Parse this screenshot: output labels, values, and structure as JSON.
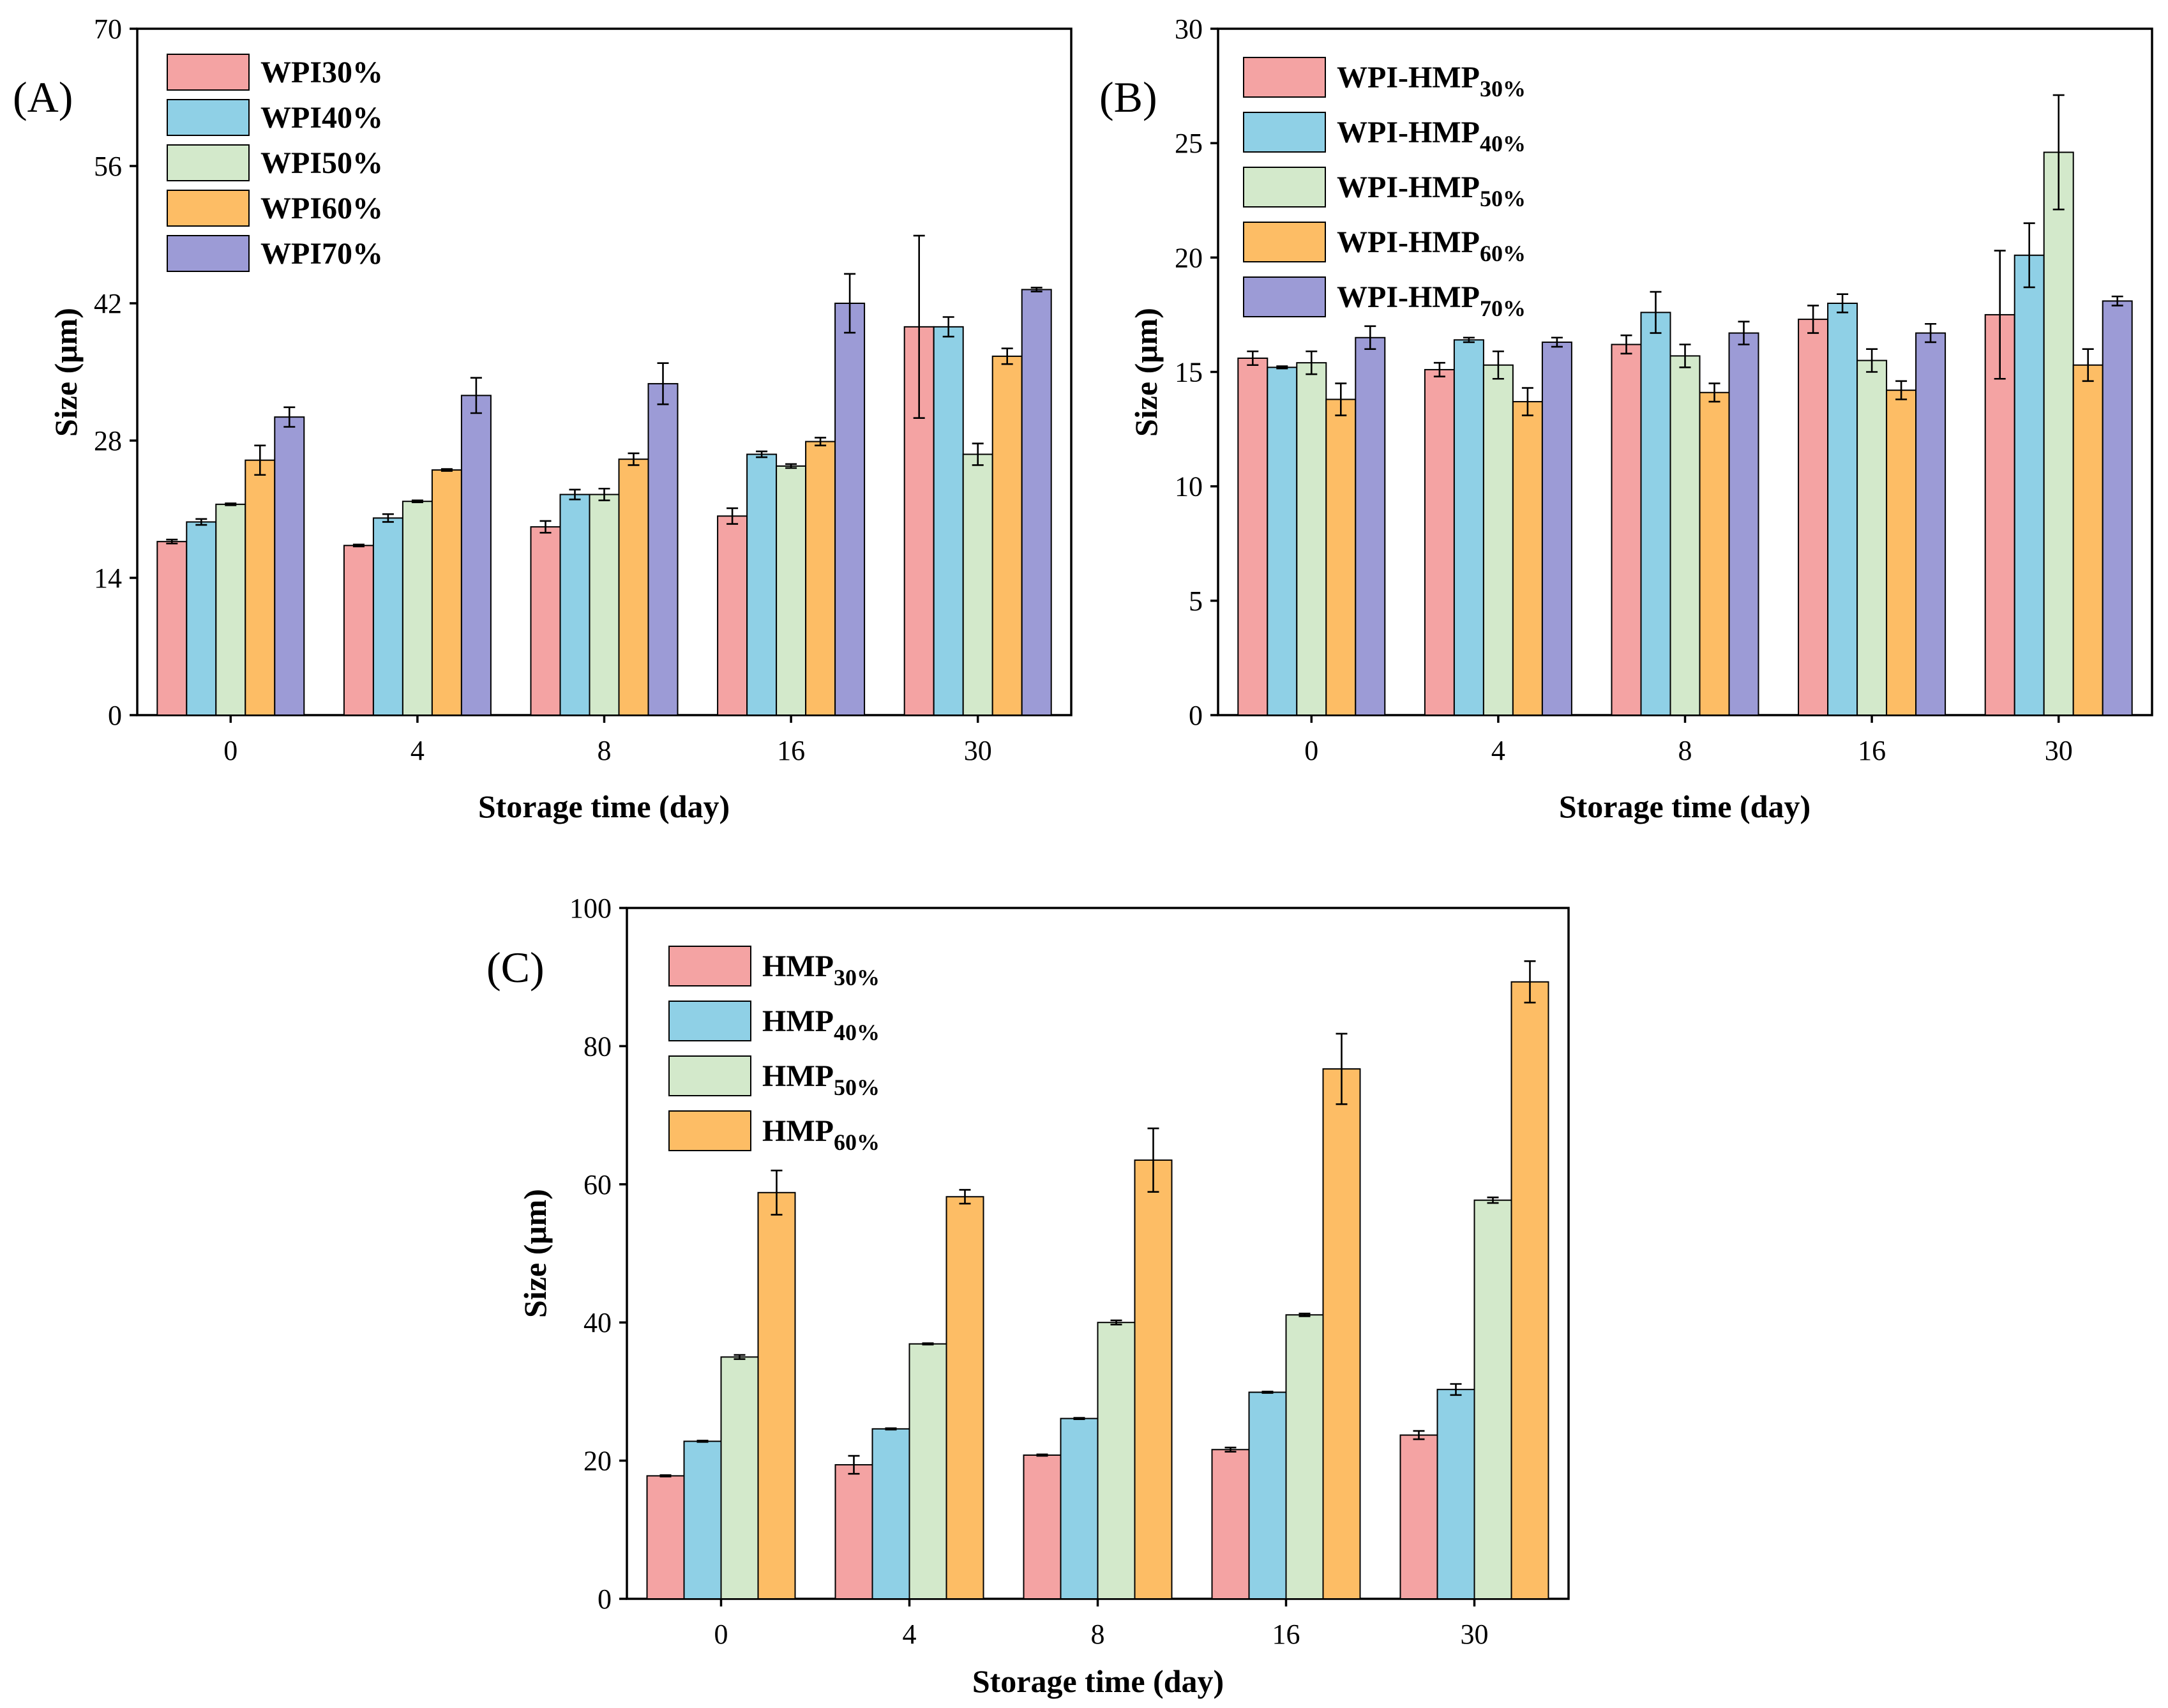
{
  "colors": {
    "s30": "#F4A3A3",
    "s40": "#8FD0E6",
    "s50": "#D3E9CB",
    "s60": "#FDBD65",
    "s70": "#9C9BD6"
  },
  "chart_data": [
    {
      "id": "A",
      "panel_label": "(A)",
      "type": "bar",
      "xlabel": "Storage time (day)",
      "ylabel": "Size (μm)",
      "ylim": [
        0,
        70
      ],
      "yticks": [
        "0",
        "14",
        "28",
        "42",
        "56",
        "70"
      ],
      "categories": [
        "0",
        "4",
        "8",
        "16",
        "30"
      ],
      "series": [
        {
          "name": "WPI30%",
          "main": "WPI30%",
          "sub": "",
          "color_key": "s30",
          "values": [
            17.7,
            17.3,
            19.2,
            20.3,
            39.6
          ],
          "errors": [
            0.2,
            0.1,
            0.6,
            0.8,
            9.3
          ]
        },
        {
          "name": "WPI40%",
          "main": "WPI40%",
          "sub": "",
          "color_key": "s40",
          "values": [
            19.7,
            20.1,
            22.5,
            26.6,
            39.6
          ],
          "errors": [
            0.3,
            0.4,
            0.5,
            0.3,
            1.0
          ]
        },
        {
          "name": "WPI50%",
          "main": "WPI50%",
          "sub": "",
          "color_key": "s50",
          "values": [
            21.5,
            21.8,
            22.5,
            25.4,
            26.6
          ],
          "errors": [
            0.1,
            0.1,
            0.6,
            0.2,
            1.1
          ]
        },
        {
          "name": "WPI60%",
          "main": "WPI60%",
          "sub": "",
          "color_key": "s60",
          "values": [
            26.0,
            25.0,
            26.1,
            27.9,
            36.6
          ],
          "errors": [
            1.5,
            0.1,
            0.6,
            0.4,
            0.8
          ]
        },
        {
          "name": "WPI70%",
          "main": "WPI70%",
          "sub": "",
          "color_key": "s70",
          "values": [
            30.4,
            32.6,
            33.8,
            42.0,
            43.4
          ],
          "errors": [
            1.0,
            1.8,
            2.1,
            3.0,
            0.2
          ]
        }
      ]
    },
    {
      "id": "B",
      "panel_label": "(B)",
      "type": "bar",
      "xlabel": "Storage time (day)",
      "ylabel": "Size (μm)",
      "ylim": [
        0,
        30
      ],
      "yticks": [
        "0",
        "5",
        "10",
        "15",
        "20",
        "25",
        "30"
      ],
      "categories": [
        "0",
        "4",
        "8",
        "16",
        "30"
      ],
      "series": [
        {
          "name": "WPI-HMP30%",
          "main": "WPI-HMP",
          "sub": "30%",
          "color_key": "s30",
          "values": [
            15.6,
            15.1,
            16.2,
            17.3,
            17.5
          ],
          "errors": [
            0.3,
            0.3,
            0.4,
            0.6,
            2.8
          ]
        },
        {
          "name": "WPI-HMP40%",
          "main": "WPI-HMP",
          "sub": "40%",
          "color_key": "s40",
          "values": [
            15.2,
            16.4,
            17.6,
            18.0,
            20.1
          ],
          "errors": [
            0.05,
            0.1,
            0.9,
            0.4,
            1.4
          ]
        },
        {
          "name": "WPI-HMP50%",
          "main": "WPI-HMP",
          "sub": "50%",
          "color_key": "s50",
          "values": [
            15.4,
            15.3,
            15.7,
            15.5,
            24.6
          ],
          "errors": [
            0.5,
            0.6,
            0.5,
            0.5,
            2.5
          ]
        },
        {
          "name": "WPI-HMP60%",
          "main": "WPI-HMP",
          "sub": "60%",
          "color_key": "s60",
          "values": [
            13.8,
            13.7,
            14.1,
            14.2,
            15.3
          ],
          "errors": [
            0.7,
            0.6,
            0.4,
            0.4,
            0.7
          ]
        },
        {
          "name": "WPI-HMP70%",
          "main": "WPI-HMP",
          "sub": "70%",
          "color_key": "s70",
          "values": [
            16.5,
            16.3,
            16.7,
            16.7,
            18.1
          ],
          "errors": [
            0.5,
            0.2,
            0.5,
            0.4,
            0.2
          ]
        }
      ]
    },
    {
      "id": "C",
      "panel_label": "(C)",
      "type": "bar",
      "xlabel": "Storage time (day)",
      "ylabel": "Size (μm)",
      "ylim": [
        0,
        100
      ],
      "yticks": [
        "0",
        "20",
        "40",
        "60",
        "80",
        "100"
      ],
      "categories": [
        "0",
        "4",
        "8",
        "16",
        "30"
      ],
      "series": [
        {
          "name": "HMP30%",
          "main": "HMP",
          "sub": "30%",
          "color_key": "s30",
          "values": [
            17.8,
            19.4,
            20.8,
            21.6,
            23.7
          ],
          "errors": [
            0.1,
            1.3,
            0.1,
            0.3,
            0.6
          ]
        },
        {
          "name": "HMP40%",
          "main": "HMP",
          "sub": "40%",
          "color_key": "s40",
          "values": [
            22.8,
            24.6,
            26.1,
            29.9,
            30.3
          ],
          "errors": [
            0.1,
            0.1,
            0.1,
            0.1,
            0.8
          ]
        },
        {
          "name": "HMP50%",
          "main": "HMP",
          "sub": "50%",
          "color_key": "s50",
          "values": [
            35.0,
            36.9,
            40.0,
            41.1,
            57.7
          ],
          "errors": [
            0.3,
            0.1,
            0.3,
            0.2,
            0.4
          ]
        },
        {
          "name": "HMP60%",
          "main": "HMP",
          "sub": "60%",
          "color_key": "s60",
          "values": [
            58.8,
            58.2,
            63.5,
            76.7,
            89.3
          ],
          "errors": [
            3.2,
            1.0,
            4.6,
            5.1,
            3.0
          ]
        }
      ]
    }
  ]
}
